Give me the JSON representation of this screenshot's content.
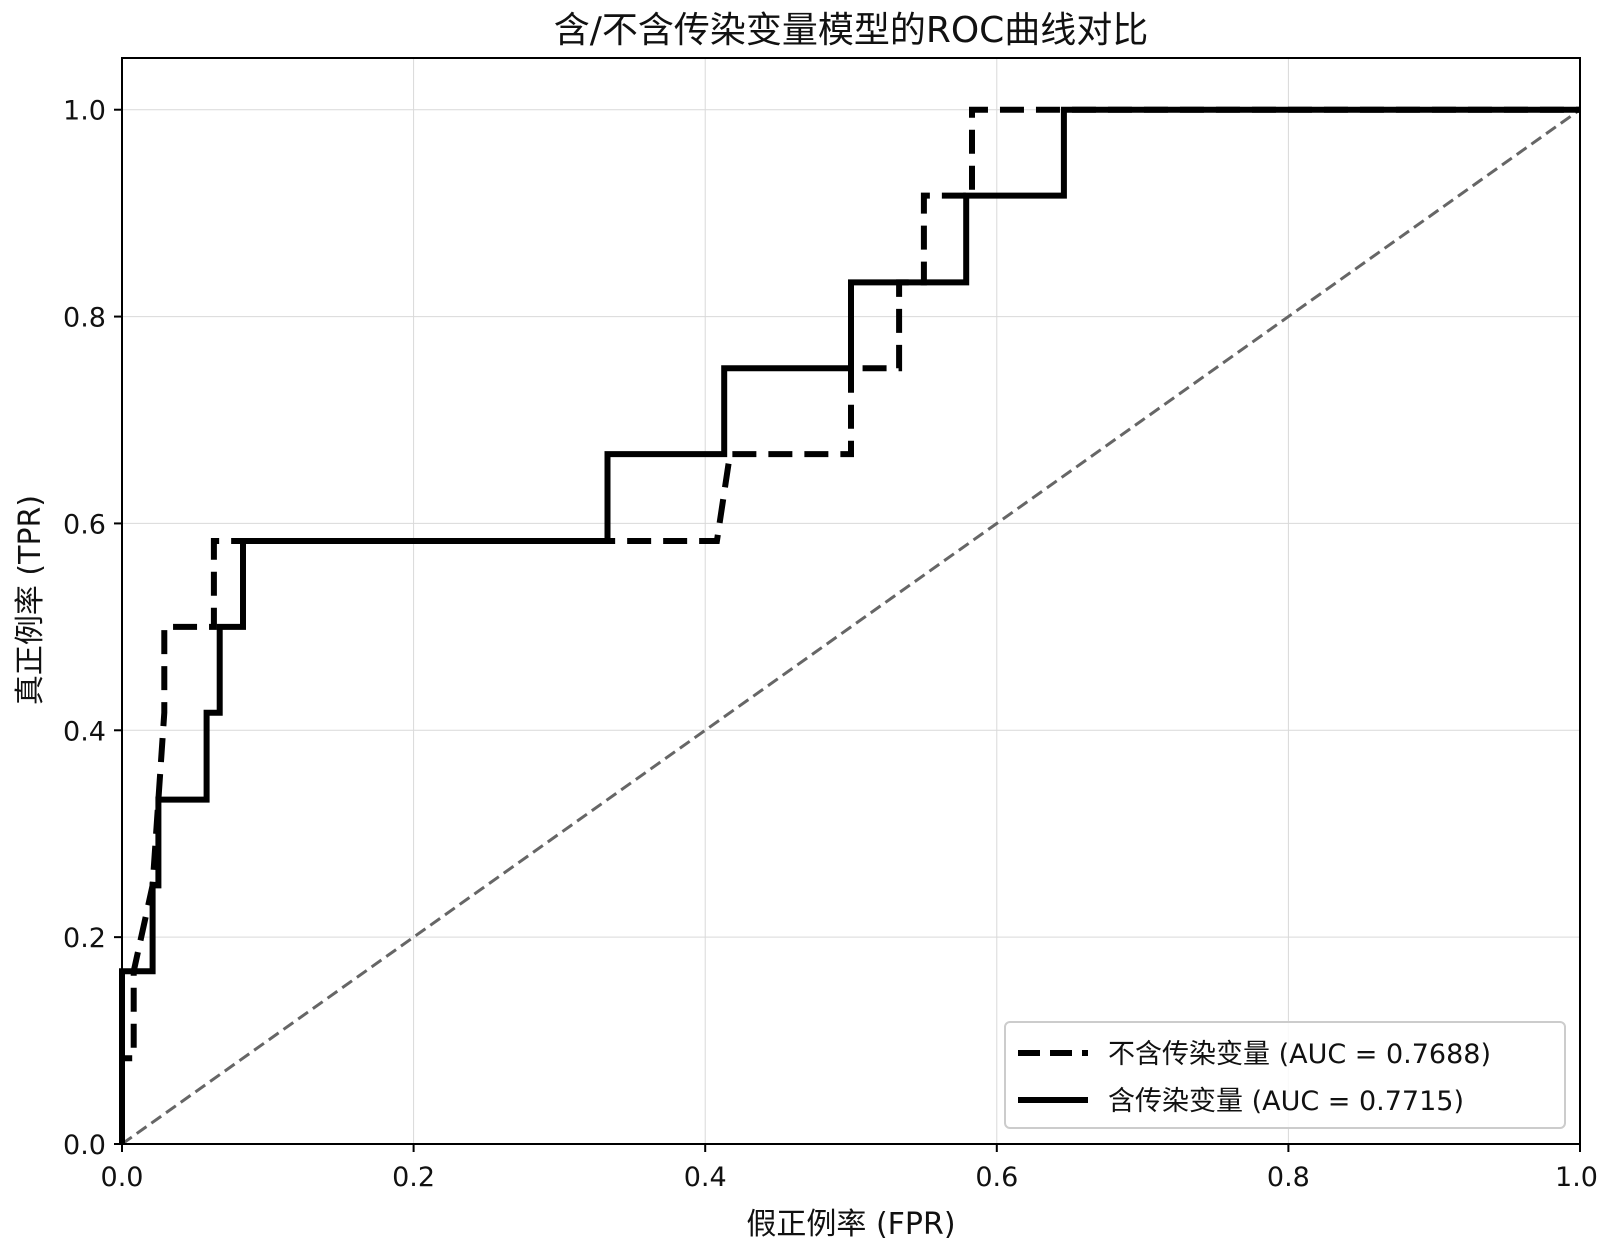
{
  "chart_data": {
    "type": "line",
    "title": "含/不含传染变量模型的ROC曲线对比",
    "xlabel": "假正例率 (FPR)",
    "ylabel": "真正例率 (TPR)",
    "xlim": [
      0,
      1
    ],
    "ylim": [
      0,
      1.05
    ],
    "xticks": [
      0.0,
      0.2,
      0.4,
      0.6,
      0.8,
      1.0
    ],
    "xtick_labels": [
      "0.0",
      "0.2",
      "0.4",
      "0.6",
      "0.8",
      "1.0"
    ],
    "yticks": [
      0.0,
      0.2,
      0.4,
      0.6,
      0.8,
      1.0
    ],
    "ytick_labels": [
      "0.0",
      "0.2",
      "0.4",
      "0.6",
      "0.8",
      "1.0"
    ],
    "grid": true,
    "legend_position": "lower-right",
    "series": [
      {
        "name": "不含传染变量 (AUC = 0.7688)",
        "style": "dashed",
        "color": "#000000",
        "x": [
          0.0,
          0.0,
          0.008,
          0.008,
          0.021,
          0.021,
          0.025,
          0.025,
          0.029,
          0.029,
          0.063,
          0.063,
          0.083,
          0.083,
          0.408,
          0.417,
          0.417,
          0.5,
          0.5,
          0.533,
          0.533,
          0.55,
          0.55,
          0.583,
          0.583,
          1.0
        ],
        "y": [
          0.0,
          0.083,
          0.083,
          0.167,
          0.25,
          0.25,
          0.333,
          0.333,
          0.417,
          0.5,
          0.5,
          0.583,
          0.583,
          0.583,
          0.583,
          0.667,
          0.667,
          0.667,
          0.75,
          0.75,
          0.833,
          0.833,
          0.917,
          0.917,
          1.0,
          1.0
        ]
      },
      {
        "name": "含传染变量 (AUC = 0.7715)",
        "style": "solid",
        "color": "#000000",
        "x": [
          0.0,
          0.0,
          0.021,
          0.021,
          0.025,
          0.025,
          0.033,
          0.033,
          0.058,
          0.058,
          0.067,
          0.067,
          0.083,
          0.083,
          0.333,
          0.333,
          0.413,
          0.413,
          0.5,
          0.5,
          0.579,
          0.579,
          0.646,
          0.646,
          1.0
        ],
        "y": [
          0.0,
          0.167,
          0.167,
          0.25,
          0.25,
          0.333,
          0.333,
          0.333,
          0.333,
          0.417,
          0.417,
          0.5,
          0.5,
          0.583,
          0.583,
          0.667,
          0.667,
          0.75,
          0.75,
          0.833,
          0.833,
          0.917,
          0.917,
          1.0,
          1.0
        ]
      },
      {
        "style": "dashed",
        "color": "#666666",
        "x": [
          0.0,
          1.0
        ],
        "y": [
          0.0,
          1.0
        ]
      }
    ]
  }
}
